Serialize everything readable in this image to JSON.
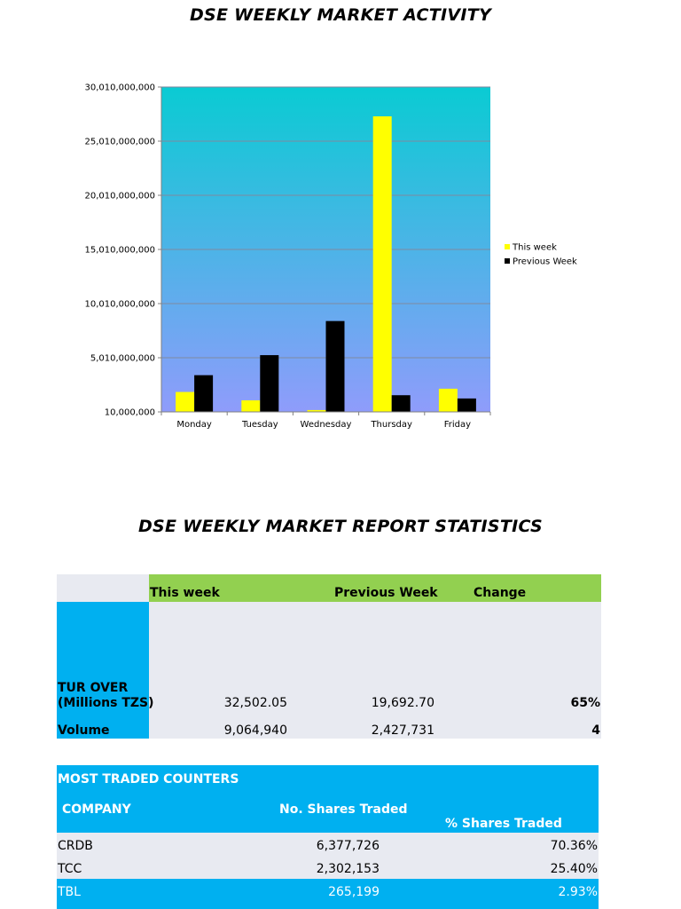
{
  "chart_title": "DSE WEEKLY MARKET ACTIVITY",
  "report_title": "DSE WEEKLY MARKET REPORT STATISTICS",
  "colors": {
    "this_week": "#ffff00",
    "previous_week": "#000000",
    "plot_top": "#0acbd3",
    "plot_bottom": "#8f9cfb",
    "green": "#92d050",
    "blue": "#00b0f0",
    "light": "#e8eaf1"
  },
  "chart_data": {
    "type": "bar",
    "categories": [
      "Monday",
      "Tuesday",
      "Wednesday",
      "Thursday",
      "Friday"
    ],
    "series": [
      {
        "name": "This week",
        "values": [
          1850000000,
          1080000000,
          180000000,
          27300000000,
          2150000000
        ]
      },
      {
        "name": "Previous Week",
        "values": [
          3400000000,
          5250000000,
          8400000000,
          1550000000,
          1250000000
        ]
      }
    ],
    "yticks": [
      "10,000,000",
      "5,010,000,000",
      "10,010,000,000",
      "15,010,000,000",
      "20,010,000,000",
      "25,010,000,000",
      "30,010,000,000"
    ],
    "ylim": [
      10000000,
      30010000000
    ],
    "grid": true,
    "legend": "right"
  },
  "stats": {
    "headers": {
      "this_week": "This week",
      "previous_week": "Previous Week",
      "change": "Change"
    },
    "turnover": {
      "label_line1": "TUR OVER",
      "label_line2": "(Millions TZS)",
      "this_week": "32,502.05",
      "previous_week": "19,692.70",
      "change": "65%"
    },
    "volume": {
      "label": "Volume",
      "this_week": "9,064,940",
      "previous_week": "2,427,731",
      "change": "4"
    }
  },
  "most_traded": {
    "title": "MOST TRADED COUNTERS",
    "headers": {
      "company": "COMPANY",
      "shares": "No. Shares Traded",
      "pct": "% Shares Traded"
    },
    "rows": [
      {
        "company": "CRDB",
        "shares": "6,377,726",
        "pct": "70.36%"
      },
      {
        "company": "TCC",
        "shares": "2,302,153",
        "pct": "25.40%"
      },
      {
        "company": "TBL",
        "shares": "265,199",
        "pct": "2.93%"
      }
    ]
  }
}
